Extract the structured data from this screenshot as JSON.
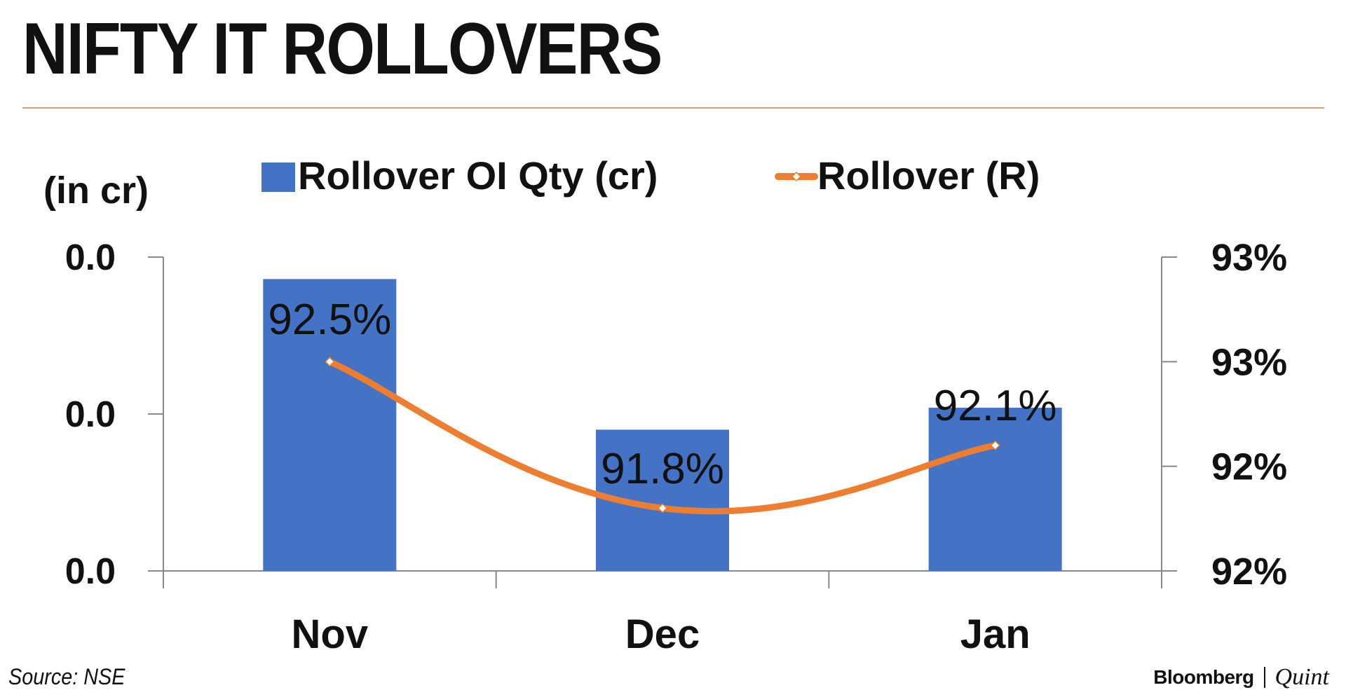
{
  "title": "NIFTY IT ROLLOVERS",
  "source": "Source: NSE",
  "brand": {
    "primary": "Bloomberg",
    "secondary": "Quint"
  },
  "colors": {
    "bar": "#4472c4",
    "line": "#ed7d31",
    "rule": "#e0a070",
    "axis": "#888888",
    "text": "#111111"
  },
  "chart_data": {
    "type": "bar",
    "categories": [
      "Nov",
      "Dec",
      "Jan"
    ],
    "y_axis_label": "(in cr)",
    "y_left_ticks": [
      "0.0",
      "0.0",
      "0.0"
    ],
    "y_right_ticks": [
      "93%",
      "93%",
      "92%",
      "92%"
    ],
    "legend": {
      "placement": "top-center"
    },
    "series": [
      {
        "name": "Rollover OI Qty (cr)",
        "type": "bar",
        "axis": "left",
        "values": [
          0.0093,
          0.0045,
          0.0052
        ],
        "ylim": [
          0,
          0.01
        ]
      },
      {
        "name": "Rollover (R)",
        "type": "line",
        "axis": "right",
        "values": [
          92.5,
          91.8,
          92.1
        ],
        "data_labels": [
          "92.5%",
          "91.8%",
          "92.1%"
        ],
        "ylim": [
          91.5,
          93
        ]
      }
    ]
  }
}
